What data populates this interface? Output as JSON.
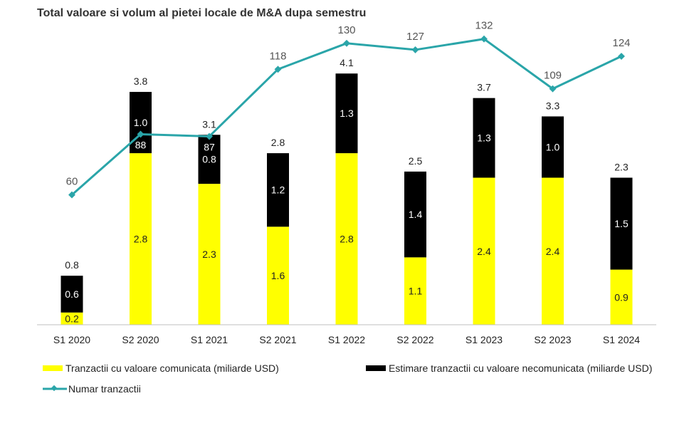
{
  "chart_data": {
    "type": "bar",
    "subtype": "stacked bar with line overlay (secondary axis)",
    "title": "Total valoare si volum al pietei locale de M&A dupa semestru",
    "categories": [
      "S1 2020",
      "S2 2020",
      "S1 2021",
      "S2 2021",
      "S1 2022",
      "S2 2022",
      "S1 2023",
      "S2 2023",
      "S1 2024"
    ],
    "series": [
      {
        "name": "Tranzactii cu valoare comunicata (miliarde USD)",
        "type": "bar",
        "color": "#ffff00",
        "values": [
          0.2,
          2.8,
          2.3,
          1.6,
          2.8,
          1.1,
          2.4,
          2.4,
          0.9
        ]
      },
      {
        "name": "Estimare tranzactii cu valoare necomunicata (miliarde USD)",
        "type": "bar",
        "color": "#000000",
        "values": [
          0.6,
          1.0,
          0.8,
          1.2,
          1.3,
          1.4,
          1.3,
          1.0,
          1.5
        ]
      },
      {
        "name": "Numar tranzactii",
        "type": "line",
        "color": "#2aa5a9",
        "axis": "secondary",
        "values": [
          60,
          88,
          87,
          118,
          130,
          127,
          132,
          109,
          124
        ]
      }
    ],
    "totals": [
      0.8,
      3.8,
      3.1,
      2.8,
      4.1,
      2.5,
      3.7,
      3.3,
      2.3
    ],
    "ylim": [
      0,
      5.3
    ],
    "y2lim": [
      0,
      150
    ],
    "grid": false,
    "axes_visible": false,
    "legend": "bottom"
  }
}
